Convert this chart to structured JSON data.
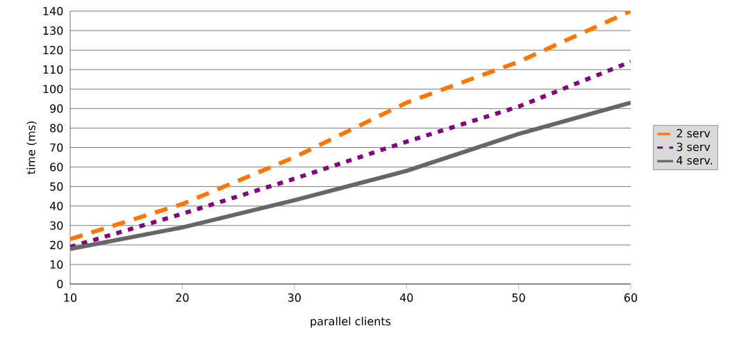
{
  "chart_data": {
    "type": "line",
    "xlabel": "parallel clients",
    "ylabel": "time (ms)",
    "x": [
      10,
      20,
      30,
      40,
      50,
      60
    ],
    "series": [
      {
        "name": "2 serv",
        "color": "#ff7700",
        "line_style": "dashed",
        "values": [
          23,
          41,
          65,
          93,
          114,
          140
        ]
      },
      {
        "name": "3 serv",
        "color": "#800080",
        "line_style": "dotted",
        "values": [
          19,
          36,
          54,
          73,
          91,
          114
        ]
      },
      {
        "name": "4 serv.",
        "color": "#666666",
        "line_style": "solid",
        "values": [
          18,
          29,
          43,
          58,
          77,
          93
        ]
      }
    ],
    "xlim": [
      10,
      60
    ],
    "xticks": [
      10,
      20,
      30,
      40,
      50,
      60
    ],
    "ylim": [
      0,
      140
    ],
    "yticks": [
      0,
      10,
      20,
      30,
      40,
      50,
      60,
      70,
      80,
      90,
      100,
      110,
      120,
      130,
      140
    ],
    "grid": "y",
    "legend": "right",
    "marker": "none"
  }
}
